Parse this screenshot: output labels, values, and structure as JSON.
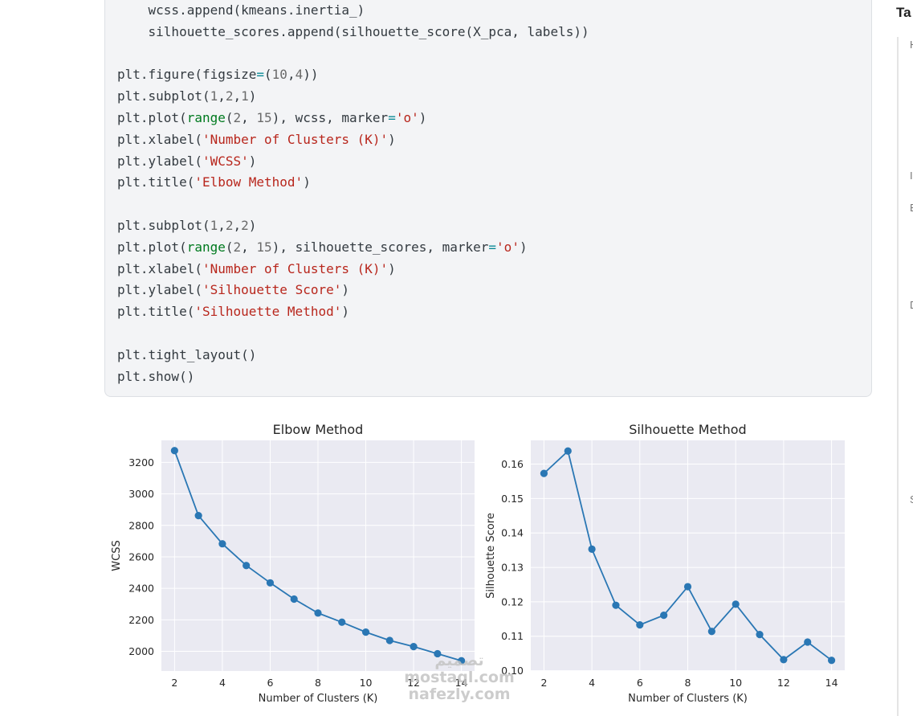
{
  "code_cell": {
    "lines": [
      [
        {
          "t": "    wcss.append(kmeans.inertia_)"
        }
      ],
      [
        {
          "t": "    silhouette_scores.append(silhouette_score(X_pca, labels))"
        }
      ],
      [],
      [
        {
          "t": "plt.figure(figsize"
        },
        {
          "t": "=",
          "c": "op"
        },
        {
          "t": "("
        },
        {
          "t": "10",
          "c": "num"
        },
        {
          "t": ","
        },
        {
          "t": "4",
          "c": "num"
        },
        {
          "t": "))"
        }
      ],
      [
        {
          "t": "plt.subplot("
        },
        {
          "t": "1",
          "c": "num"
        },
        {
          "t": ","
        },
        {
          "t": "2",
          "c": "num"
        },
        {
          "t": ","
        },
        {
          "t": "1",
          "c": "num"
        },
        {
          "t": ")"
        }
      ],
      [
        {
          "t": "plt.plot("
        },
        {
          "t": "range",
          "c": "kw"
        },
        {
          "t": "("
        },
        {
          "t": "2",
          "c": "num"
        },
        {
          "t": ", "
        },
        {
          "t": "15",
          "c": "num"
        },
        {
          "t": "), wcss, marker"
        },
        {
          "t": "=",
          "c": "op"
        },
        {
          "t": "'o'",
          "c": "str"
        },
        {
          "t": ")"
        }
      ],
      [
        {
          "t": "plt.xlabel("
        },
        {
          "t": "'Number of Clusters (K)'",
          "c": "str"
        },
        {
          "t": ")"
        }
      ],
      [
        {
          "t": "plt.ylabel("
        },
        {
          "t": "'WCSS'",
          "c": "str"
        },
        {
          "t": ")"
        }
      ],
      [
        {
          "t": "plt.title("
        },
        {
          "t": "'Elbow Method'",
          "c": "str"
        },
        {
          "t": ")"
        }
      ],
      [],
      [
        {
          "t": "plt.subplot("
        },
        {
          "t": "1",
          "c": "num"
        },
        {
          "t": ","
        },
        {
          "t": "2",
          "c": "num"
        },
        {
          "t": ","
        },
        {
          "t": "2",
          "c": "num"
        },
        {
          "t": ")"
        }
      ],
      [
        {
          "t": "plt.plot("
        },
        {
          "t": "range",
          "c": "kw"
        },
        {
          "t": "("
        },
        {
          "t": "2",
          "c": "num"
        },
        {
          "t": ", "
        },
        {
          "t": "15",
          "c": "num"
        },
        {
          "t": "), silhouette_scores, marker"
        },
        {
          "t": "=",
          "c": "op"
        },
        {
          "t": "'o'",
          "c": "str"
        },
        {
          "t": ")"
        }
      ],
      [
        {
          "t": "plt.xlabel("
        },
        {
          "t": "'Number of Clusters (K)'",
          "c": "str"
        },
        {
          "t": ")"
        }
      ],
      [
        {
          "t": "plt.ylabel("
        },
        {
          "t": "'Silhouette Score'",
          "c": "str"
        },
        {
          "t": ")"
        }
      ],
      [
        {
          "t": "plt.title("
        },
        {
          "t": "'Silhouette Method'",
          "c": "str"
        },
        {
          "t": ")"
        }
      ],
      [],
      [
        {
          "t": "plt.tight_layout()"
        }
      ],
      [
        {
          "t": "plt.show()"
        }
      ]
    ]
  },
  "right_panel": {
    "title": "Ta",
    "marks": [
      "H",
      "I",
      "E",
      "D",
      "S"
    ]
  },
  "watermark": {
    "lines": [
      "تصميم",
      "mostaql.com",
      "nafezly.com"
    ]
  },
  "colors": {
    "line": "#2a77b4",
    "plot_bg": "#eaeaf2",
    "grid": "#ffffff",
    "text": "#262626"
  },
  "chart_data": [
    {
      "type": "line",
      "title": "Elbow Method",
      "xlabel": "Number of Clusters (K)",
      "ylabel": "WCSS",
      "x": [
        2,
        3,
        4,
        5,
        6,
        7,
        8,
        9,
        10,
        11,
        12,
        13,
        14
      ],
      "values": [
        3275,
        2862,
        2683,
        2545,
        2435,
        2332,
        2243,
        2185,
        2122,
        2069,
        2030,
        1985,
        1940
      ],
      "xticks": [
        "2",
        "4",
        "6",
        "8",
        "10",
        "12",
        "14"
      ],
      "yticks": [
        "2000",
        "2200",
        "2400",
        "2600",
        "2800",
        "3000",
        "3200"
      ],
      "xlim": [
        1.45,
        14.55
      ],
      "ylim": [
        1875,
        3340
      ],
      "grid": true
    },
    {
      "type": "line",
      "title": "Silhouette Method",
      "xlabel": "Number of Clusters (K)",
      "ylabel": "Silhouette Score",
      "x": [
        2,
        3,
        4,
        5,
        6,
        7,
        8,
        9,
        10,
        11,
        12,
        13,
        14
      ],
      "values": [
        0.1573,
        0.1638,
        0.1353,
        0.119,
        0.1133,
        0.1161,
        0.1244,
        0.1114,
        0.1193,
        0.1105,
        0.1032,
        0.1083,
        0.103
      ],
      "xticks": [
        "2",
        "4",
        "6",
        "8",
        "10",
        "12",
        "14"
      ],
      "yticks": [
        "0.10",
        "0.11",
        "0.12",
        "0.13",
        "0.14",
        "0.15",
        "0.16"
      ],
      "xlim": [
        1.45,
        14.55
      ],
      "ylim": [
        0.0999,
        0.1669
      ],
      "grid": true
    }
  ]
}
